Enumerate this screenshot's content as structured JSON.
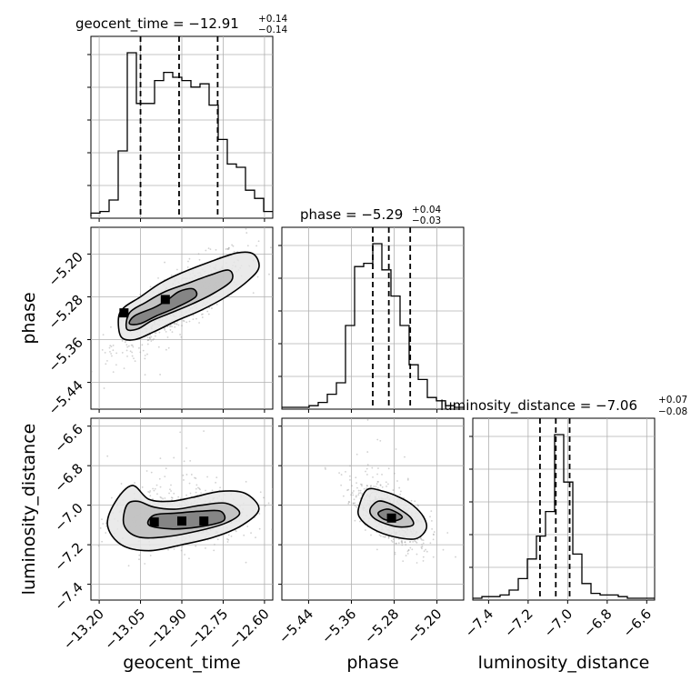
{
  "chart_data": {
    "type": "corner",
    "parameters": [
      "geocent_time",
      "phase",
      "luminosity_distance"
    ],
    "axis_labels": [
      "geocent_time",
      "phase",
      "luminosity_distance"
    ],
    "titles": [
      {
        "main": "geocent_time = −12.91",
        "plus": "+0.14",
        "minus": "−0.14"
      },
      {
        "main": "phase = −5.29",
        "plus": "+0.04",
        "minus": "−0.03"
      },
      {
        "main": "luminosity_distance = −7.06",
        "plus": "+0.07",
        "minus": "−0.08"
      }
    ],
    "ranges": [
      [
        -13.23,
        -12.57
      ],
      [
        -5.49,
        -5.15
      ],
      [
        -7.48,
        -6.56
      ]
    ],
    "ticks": {
      "geocent_time": [
        -13.2,
        -13.05,
        -12.9,
        -12.75,
        -12.6
      ],
      "geocent_time_labels": [
        "−13.20",
        "−13.05",
        "−12.90",
        "−12.75",
        "−12.60"
      ],
      "phase": [
        -5.44,
        -5.36,
        -5.28,
        -5.2
      ],
      "phase_labels": [
        "−5.44",
        "−5.36",
        "−5.28",
        "−5.20"
      ],
      "luminosity_distance": [
        -7.4,
        -7.2,
        -7.0,
        -6.8,
        -6.6
      ],
      "luminosity_distance_labels": [
        "−7.4",
        "−7.2",
        "−7.0",
        "−6.8",
        "−6.6"
      ]
    },
    "quantiles": [
      [
        -13.05,
        -12.91,
        -12.77
      ],
      [
        -5.32,
        -5.29,
        -5.25
      ],
      [
        -7.14,
        -7.06,
        -6.99
      ]
    ],
    "histograms": [
      {
        "edges_start": -13.23,
        "bin_width": 0.033,
        "counts": [
          0.02,
          0.03,
          0.1,
          0.4,
          1.0,
          0.69,
          0.69,
          0.83,
          0.88,
          0.85,
          0.83,
          0.79,
          0.81,
          0.68,
          0.47,
          0.32,
          0.3,
          0.16,
          0.11,
          0.03
        ]
      },
      {
        "edges_start": -5.49,
        "bin_width": 0.017,
        "counts": [
          0.0,
          0.0,
          0.0,
          0.01,
          0.03,
          0.08,
          0.15,
          0.5,
          0.86,
          0.88,
          1.0,
          0.84,
          0.68,
          0.5,
          0.26,
          0.17,
          0.06,
          0.04,
          0.01,
          0.0
        ]
      },
      {
        "edges_start": -7.48,
        "bin_width": 0.046,
        "counts": [
          0.0,
          0.01,
          0.01,
          0.02,
          0.05,
          0.12,
          0.24,
          0.38,
          0.53,
          1.0,
          0.71,
          0.27,
          0.09,
          0.03,
          0.02,
          0.02,
          0.01,
          0.0,
          0.0,
          0.0
        ]
      }
    ],
    "contours_2d": [
      {
        "x": "geocent_time",
        "y": "phase",
        "levels": [
          [
            [
              -13.12,
              -5.355
            ],
            [
              -13.13,
              -5.32
            ],
            [
              -13.11,
              -5.3
            ],
            [
              -13.05,
              -5.28
            ],
            [
              -12.98,
              -5.255
            ],
            [
              -12.9,
              -5.235
            ],
            [
              -12.8,
              -5.215
            ],
            [
              -12.7,
              -5.198
            ],
            [
              -12.64,
              -5.2
            ],
            [
              -12.62,
              -5.225
            ],
            [
              -12.66,
              -5.25
            ],
            [
              -12.74,
              -5.28
            ],
            [
              -12.83,
              -5.305
            ],
            [
              -12.92,
              -5.325
            ],
            [
              -13.0,
              -5.345
            ],
            [
              -13.07,
              -5.36
            ]
          ],
          [
            [
              -13.1,
              -5.34
            ],
            [
              -13.09,
              -5.31
            ],
            [
              -13.03,
              -5.29
            ],
            [
              -12.96,
              -5.27
            ],
            [
              -12.88,
              -5.255
            ],
            [
              -12.8,
              -5.24
            ],
            [
              -12.73,
              -5.23
            ],
            [
              -12.72,
              -5.25
            ],
            [
              -12.79,
              -5.275
            ],
            [
              -12.87,
              -5.295
            ],
            [
              -12.94,
              -5.31
            ],
            [
              -13.01,
              -5.325
            ],
            [
              -13.06,
              -5.34
            ]
          ],
          [
            [
              -13.09,
              -5.33
            ],
            [
              -13.07,
              -5.315
            ],
            [
              -13.0,
              -5.3
            ],
            [
              -12.95,
              -5.285
            ],
            [
              -12.91,
              -5.27
            ],
            [
              -12.86,
              -5.265
            ],
            [
              -12.85,
              -5.28
            ],
            [
              -12.92,
              -5.3
            ],
            [
              -12.99,
              -5.315
            ],
            [
              -13.05,
              -5.33
            ]
          ]
        ]
      },
      {
        "x": "geocent_time",
        "y": "luminosity_distance",
        "levels": [
          [
            [
              -13.17,
              -7.1
            ],
            [
              -13.14,
              -6.98
            ],
            [
              -13.08,
              -6.9
            ],
            [
              -13.02,
              -6.97
            ],
            [
              -12.94,
              -6.98
            ],
            [
              -12.86,
              -6.96
            ],
            [
              -12.76,
              -6.93
            ],
            [
              -12.67,
              -6.94
            ],
            [
              -12.62,
              -7.02
            ],
            [
              -12.68,
              -7.1
            ],
            [
              -12.78,
              -7.16
            ],
            [
              -12.9,
              -7.2
            ],
            [
              -13.02,
              -7.23
            ],
            [
              -13.12,
              -7.2
            ]
          ],
          [
            [
              -13.11,
              -7.1
            ],
            [
              -13.1,
              -7.0
            ],
            [
              -13.06,
              -6.98
            ],
            [
              -13.0,
              -7.01
            ],
            [
              -12.92,
              -7.02
            ],
            [
              -12.83,
              -7.0
            ],
            [
              -12.74,
              -6.99
            ],
            [
              -12.69,
              -7.04
            ],
            [
              -12.74,
              -7.09
            ],
            [
              -12.84,
              -7.13
            ],
            [
              -12.96,
              -7.16
            ],
            [
              -13.06,
              -7.16
            ]
          ],
          [
            [
              -13.02,
              -7.1
            ],
            [
              -13.0,
              -7.05
            ],
            [
              -12.92,
              -7.04
            ],
            [
              -12.83,
              -7.03
            ],
            [
              -12.76,
              -7.03
            ],
            [
              -12.75,
              -7.08
            ],
            [
              -12.84,
              -7.11
            ],
            [
              -12.94,
              -7.12
            ]
          ]
        ]
      },
      {
        "x": "phase",
        "y": "luminosity_distance",
        "levels": [
          [
            [
              -5.345,
              -7.0
            ],
            [
              -5.33,
              -6.92
            ],
            [
              -5.3,
              -6.93
            ],
            [
              -5.27,
              -6.96
            ],
            [
              -5.245,
              -7.0
            ],
            [
              -5.225,
              -7.06
            ],
            [
              -5.22,
              -7.12
            ],
            [
              -5.24,
              -7.17
            ],
            [
              -5.28,
              -7.16
            ],
            [
              -5.32,
              -7.12
            ],
            [
              -5.345,
              -7.06
            ]
          ],
          [
            [
              -5.325,
              -7.02
            ],
            [
              -5.31,
              -6.98
            ],
            [
              -5.29,
              -6.99
            ],
            [
              -5.27,
              -7.02
            ],
            [
              -5.25,
              -7.06
            ],
            [
              -5.245,
              -7.1
            ],
            [
              -5.27,
              -7.11
            ],
            [
              -5.3,
              -7.09
            ],
            [
              -5.32,
              -7.06
            ]
          ],
          [
            [
              -5.31,
              -7.04
            ],
            [
              -5.295,
              -7.02
            ],
            [
              -5.28,
              -7.03
            ],
            [
              -5.265,
              -7.06
            ],
            [
              -5.28,
              -7.08
            ],
            [
              -5.3,
              -7.07
            ]
          ]
        ]
      }
    ],
    "grid": true,
    "colors": {
      "ink": "#000000",
      "grid": "#b0b0b0",
      "scatter": "#9a9a9a",
      "fill_light": "#e6e6e6",
      "fill_mid": "#bdbdbd",
      "fill_dark": "#7a7a7a"
    }
  }
}
